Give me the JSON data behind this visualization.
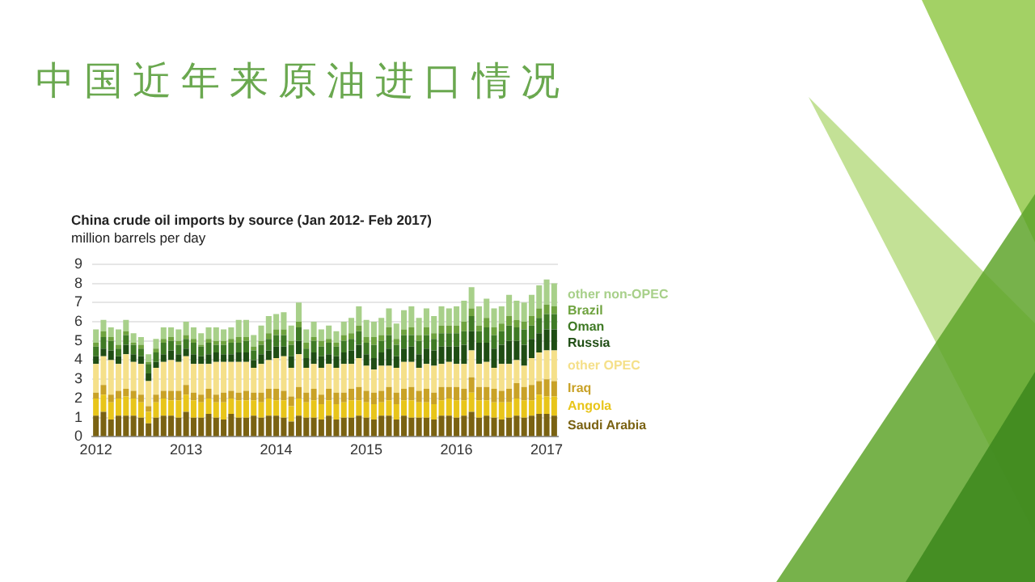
{
  "chart_data": {
    "type": "bar",
    "title": "中国近年来原油进口情况",
    "subtitle": "China crude oil imports by source (Jan 2012- Feb 2017)",
    "ylabel": "million barrels per day",
    "stacked": true,
    "categories": [
      "2012",
      null,
      null,
      null,
      null,
      null,
      null,
      null,
      null,
      null,
      null,
      null,
      "2013",
      null,
      null,
      null,
      null,
      null,
      null,
      null,
      null,
      null,
      null,
      null,
      "2014",
      null,
      null,
      null,
      null,
      null,
      null,
      null,
      null,
      null,
      null,
      null,
      "2015",
      null,
      null,
      null,
      null,
      null,
      null,
      null,
      null,
      null,
      null,
      null,
      "2016",
      null,
      null,
      null,
      null,
      null,
      null,
      null,
      null,
      null,
      null,
      null,
      "2017",
      null
    ],
    "series": [
      {
        "name": "Saudi Arabia",
        "color": "#7a6212",
        "values": [
          1.1,
          1.3,
          0.9,
          1.1,
          1.1,
          1.1,
          1.0,
          0.7,
          1.0,
          1.1,
          1.1,
          1.0,
          1.3,
          1.0,
          1.0,
          1.2,
          1.0,
          0.9,
          1.2,
          1.0,
          1.0,
          1.1,
          1.0,
          1.1,
          1.1,
          1.0,
          0.8,
          1.1,
          1.0,
          1.0,
          0.9,
          1.1,
          0.9,
          1.0,
          1.0,
          1.1,
          1.0,
          0.9,
          1.1,
          1.1,
          0.9,
          1.1,
          1.0,
          1.0,
          1.0,
          0.9,
          1.1,
          1.1,
          1.0,
          1.1,
          1.3,
          1.0,
          1.1,
          1.0,
          0.9,
          1.0,
          1.1,
          1.0,
          1.1,
          1.2,
          1.2,
          1.1
        ]
      },
      {
        "name": "Angola",
        "color": "#e8c51a",
        "values": [
          0.9,
          0.9,
          0.9,
          0.9,
          1.0,
          0.9,
          0.8,
          0.6,
          0.8,
          0.9,
          0.8,
          0.9,
          0.9,
          0.9,
          0.8,
          0.8,
          0.8,
          0.9,
          0.8,
          0.9,
          0.9,
          0.8,
          0.8,
          0.9,
          0.8,
          0.9,
          0.8,
          0.9,
          0.8,
          0.9,
          0.8,
          0.8,
          0.8,
          0.8,
          0.9,
          0.8,
          0.8,
          0.8,
          0.7,
          0.8,
          0.8,
          0.8,
          0.9,
          0.8,
          0.8,
          0.8,
          0.8,
          0.9,
          0.9,
          0.8,
          1.0,
          0.9,
          0.8,
          0.8,
          0.9,
          0.8,
          0.9,
          0.9,
          0.8,
          1.0,
          0.9,
          1.0
        ]
      },
      {
        "name": "Iraq",
        "color": "#c9a227",
        "values": [
          0.3,
          0.5,
          0.4,
          0.4,
          0.4,
          0.4,
          0.4,
          0.3,
          0.4,
          0.4,
          0.5,
          0.5,
          0.5,
          0.4,
          0.4,
          0.5,
          0.4,
          0.5,
          0.4,
          0.4,
          0.5,
          0.4,
          0.5,
          0.5,
          0.6,
          0.5,
          0.5,
          0.6,
          0.5,
          0.6,
          0.5,
          0.6,
          0.6,
          0.5,
          0.6,
          0.7,
          0.6,
          0.6,
          0.6,
          0.7,
          0.6,
          0.6,
          0.7,
          0.6,
          0.7,
          0.6,
          0.7,
          0.6,
          0.7,
          0.6,
          0.8,
          0.7,
          0.7,
          0.7,
          0.6,
          0.7,
          0.8,
          0.7,
          0.8,
          0.7,
          0.9,
          0.8
        ]
      },
      {
        "name": "other OPEC",
        "color": "#f5e08a",
        "values": [
          1.5,
          1.5,
          1.8,
          1.4,
          1.8,
          1.5,
          1.6,
          1.3,
          1.4,
          1.5,
          1.6,
          1.5,
          1.5,
          1.5,
          1.6,
          1.3,
          1.7,
          1.6,
          1.5,
          1.6,
          1.5,
          1.3,
          1.5,
          1.5,
          1.6,
          1.8,
          1.5,
          1.7,
          1.3,
          1.3,
          1.4,
          1.3,
          1.3,
          1.5,
          1.3,
          1.5,
          1.3,
          1.2,
          1.3,
          1.1,
          1.3,
          1.4,
          1.3,
          1.2,
          1.3,
          1.4,
          1.2,
          1.3,
          1.2,
          1.3,
          1.4,
          1.2,
          1.3,
          1.1,
          1.4,
          1.3,
          1.2,
          1.1,
          1.4,
          1.5,
          1.5,
          1.6
        ]
      },
      {
        "name": "Russia",
        "color": "#1f4d14",
        "values": [
          0.4,
          0.4,
          0.5,
          0.4,
          0.5,
          0.4,
          0.4,
          0.4,
          0.3,
          0.4,
          0.5,
          0.4,
          0.4,
          0.5,
          0.4,
          0.5,
          0.5,
          0.4,
          0.4,
          0.5,
          0.5,
          0.4,
          0.5,
          0.5,
          0.6,
          0.5,
          0.6,
          0.7,
          0.5,
          0.6,
          0.6,
          0.5,
          0.6,
          0.6,
          0.7,
          0.7,
          0.6,
          0.6,
          0.7,
          0.9,
          0.6,
          0.7,
          0.8,
          0.7,
          0.8,
          0.8,
          0.9,
          0.8,
          0.9,
          1.0,
          1.0,
          1.1,
          1.0,
          1.0,
          1.0,
          1.2,
          1.0,
          1.1,
          1.0,
          1.0,
          1.1,
          1.1
        ]
      },
      {
        "name": "Oman",
        "color": "#3f7a25",
        "values": [
          0.5,
          0.6,
          0.5,
          0.4,
          0.5,
          0.5,
          0.4,
          0.5,
          0.5,
          0.6,
          0.5,
          0.5,
          0.5,
          0.6,
          0.5,
          0.6,
          0.4,
          0.5,
          0.6,
          0.5,
          0.6,
          0.5,
          0.5,
          0.6,
          0.6,
          0.6,
          0.6,
          0.7,
          0.5,
          0.6,
          0.5,
          0.6,
          0.5,
          0.6,
          0.6,
          0.7,
          0.6,
          0.7,
          0.6,
          0.7,
          0.6,
          0.7,
          0.6,
          0.7,
          0.7,
          0.6,
          0.7,
          0.7,
          0.7,
          0.7,
          0.8,
          0.6,
          0.8,
          0.7,
          0.7,
          0.8,
          0.7,
          0.8,
          0.7,
          0.8,
          0.8,
          0.8
        ]
      },
      {
        "name": "Brazil",
        "color": "#6fa33f",
        "values": [
          0.2,
          0.3,
          0.2,
          0.2,
          0.2,
          0.1,
          0.2,
          0.1,
          0.2,
          0.2,
          0.2,
          0.2,
          0.2,
          0.2,
          0.1,
          0.2,
          0.2,
          0.2,
          0.2,
          0.3,
          0.2,
          0.2,
          0.2,
          0.3,
          0.3,
          0.3,
          0.2,
          0.3,
          0.3,
          0.2,
          0.3,
          0.2,
          0.2,
          0.3,
          0.3,
          0.3,
          0.3,
          0.4,
          0.3,
          0.4,
          0.3,
          0.3,
          0.4,
          0.3,
          0.4,
          0.3,
          0.4,
          0.4,
          0.4,
          0.5,
          0.4,
          0.3,
          0.5,
          0.4,
          0.4,
          0.5,
          0.4,
          0.4,
          0.5,
          0.5,
          0.5,
          0.4
        ]
      },
      {
        "name": "other non-OPEC",
        "color": "#a8d08a",
        "values": [
          0.7,
          0.6,
          0.5,
          0.8,
          0.6,
          0.5,
          0.4,
          0.4,
          0.5,
          0.6,
          0.5,
          0.6,
          0.7,
          0.6,
          0.6,
          0.6,
          0.7,
          0.6,
          0.6,
          0.9,
          0.9,
          0.6,
          0.8,
          0.9,
          0.8,
          0.9,
          0.8,
          1.0,
          0.7,
          0.8,
          0.6,
          0.7,
          0.6,
          0.7,
          0.8,
          1.0,
          0.9,
          0.8,
          0.9,
          1.0,
          0.8,
          1.0,
          1.1,
          0.9,
          1.0,
          0.9,
          1.0,
          0.9,
          1.0,
          1.1,
          1.1,
          1.0,
          1.0,
          1.0,
          0.9,
          1.1,
          1.0,
          1.0,
          1.1,
          1.2,
          1.3,
          1.2
        ]
      }
    ],
    "ylim": [
      0,
      9
    ],
    "yticks": [
      0,
      1,
      2,
      3,
      4,
      5,
      6,
      7,
      8,
      9
    ],
    "grid": "y"
  }
}
